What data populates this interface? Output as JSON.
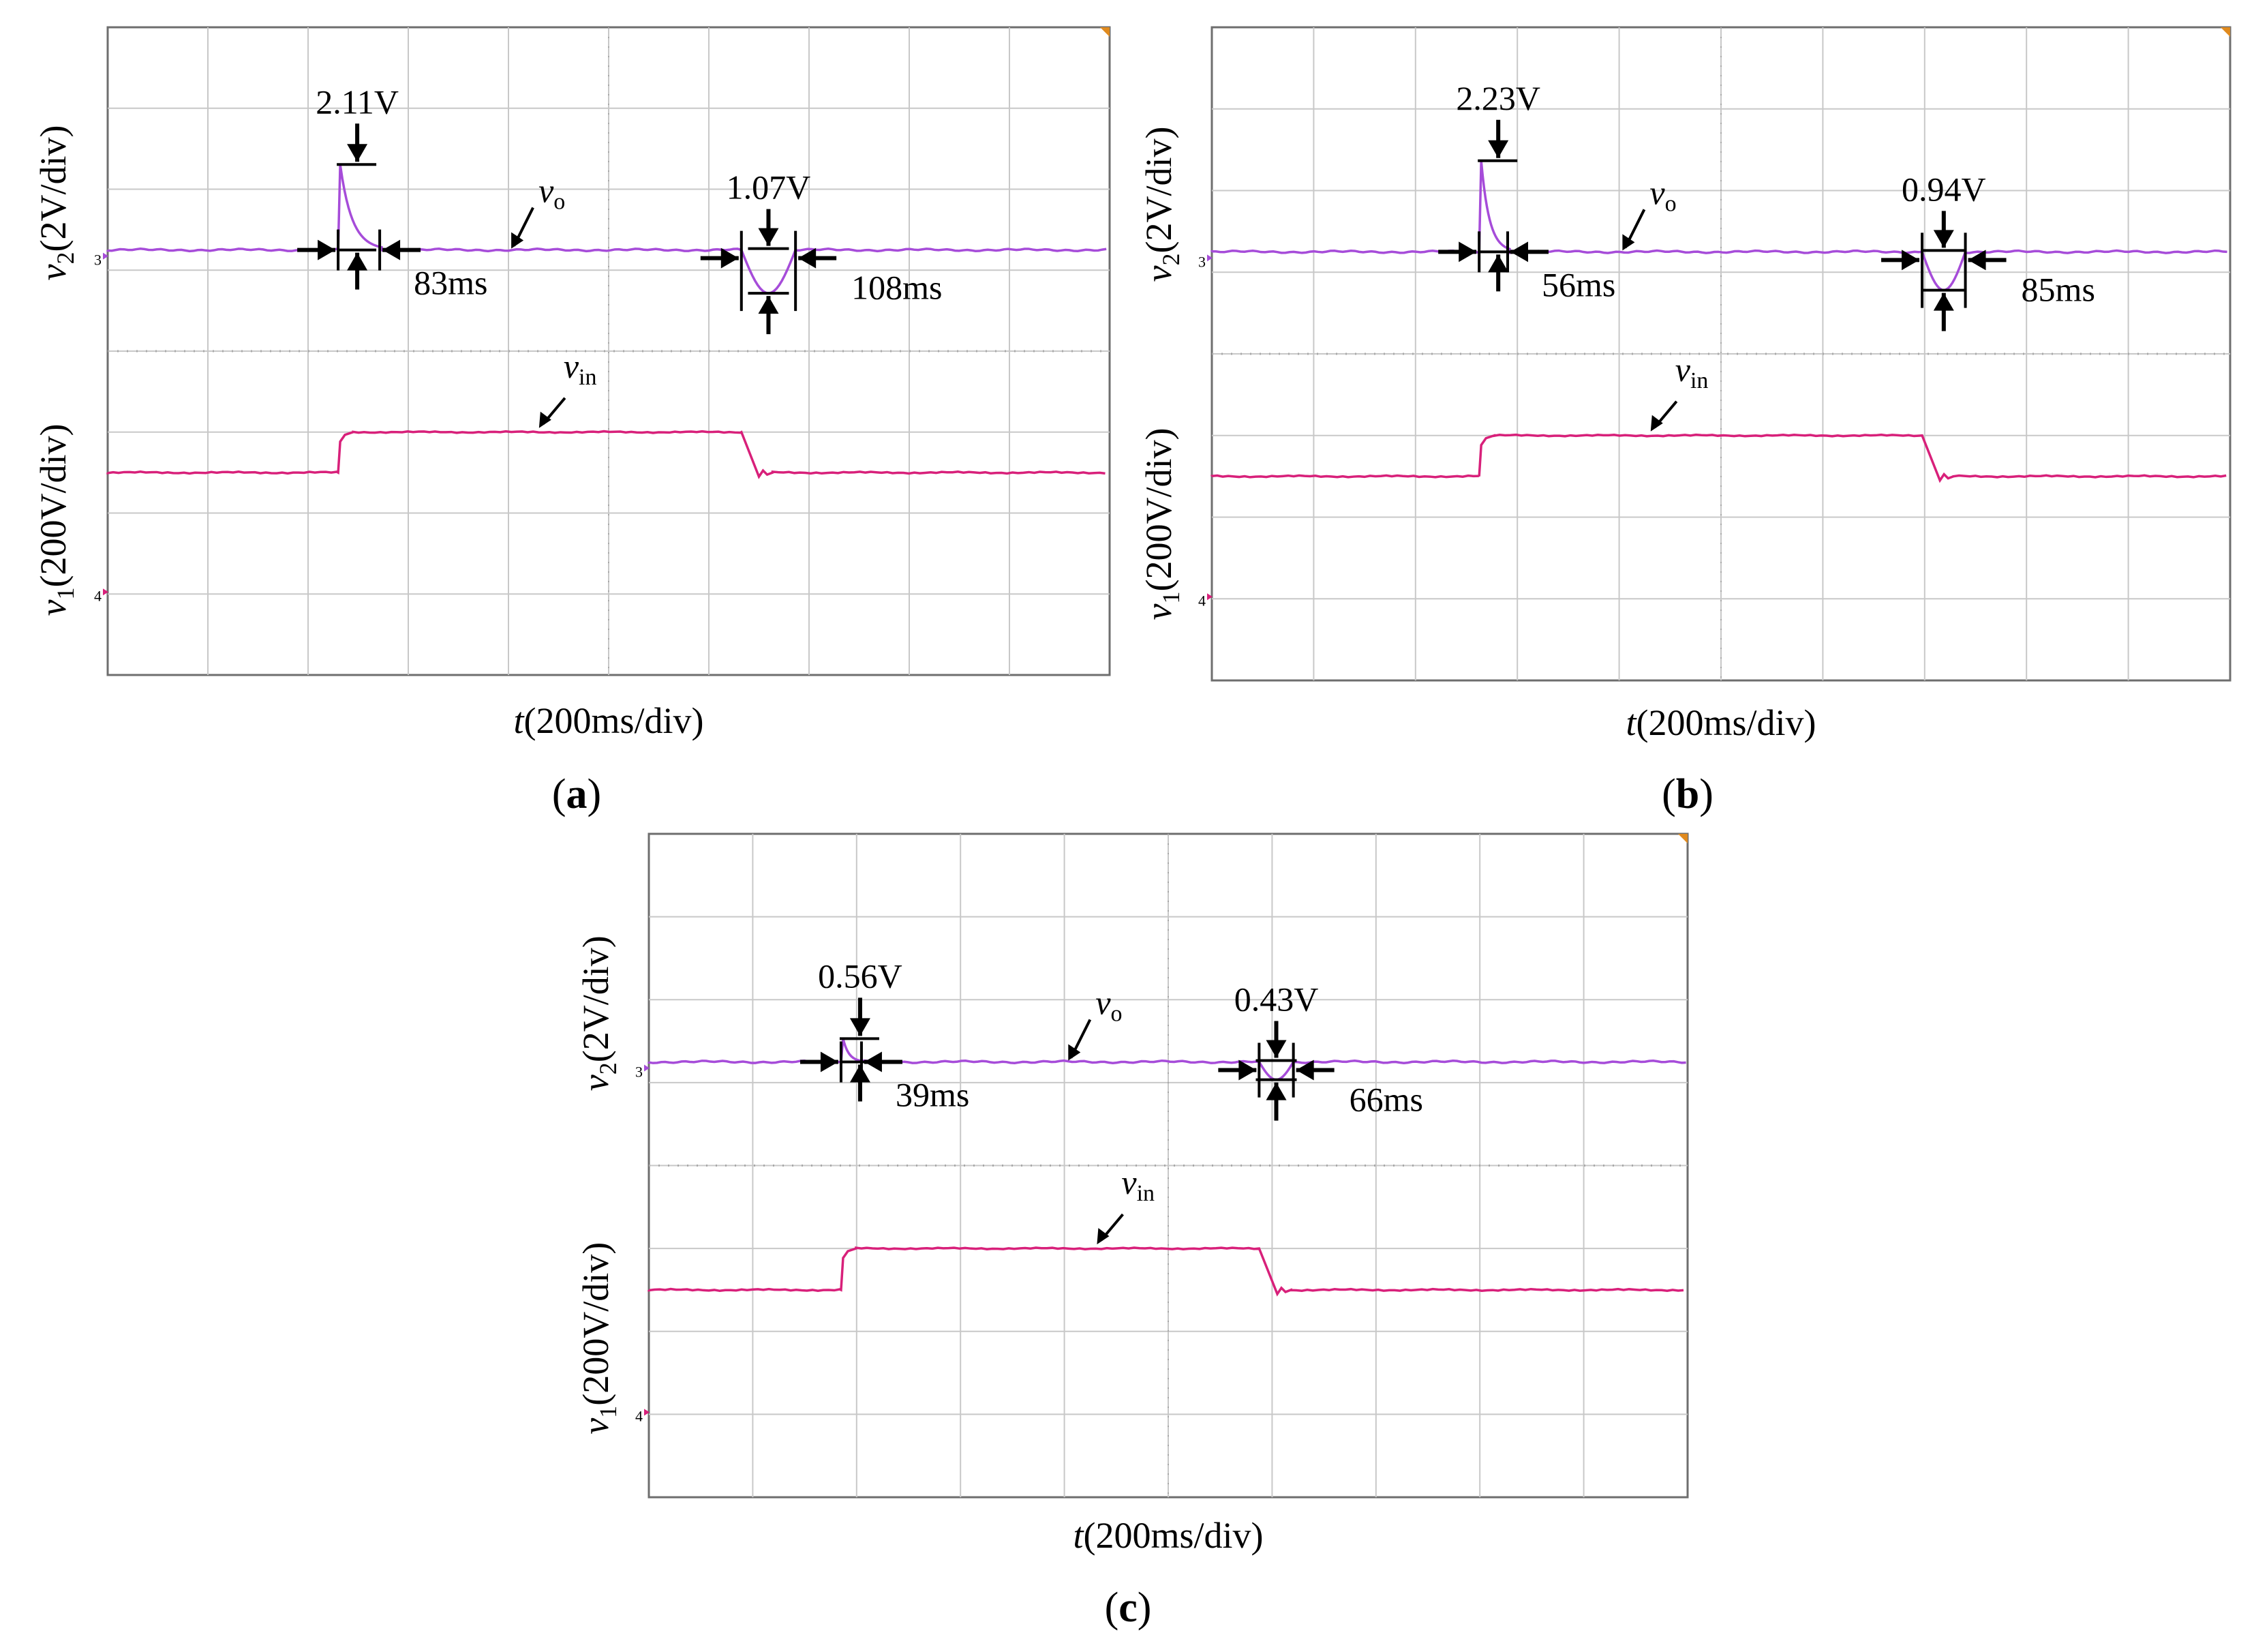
{
  "chart_data": [
    {
      "panel_label": "a",
      "type": "line",
      "xlabel_var": "t",
      "xlabel_unit": "(200ms/div)",
      "ylabel_top_var": "v",
      "ylabel_top_sub": "2",
      "ylabel_top_unit": "(2V/div)",
      "ylabel_bottom_var": "v",
      "ylabel_bottom_sub": "1",
      "ylabel_bottom_unit": "(200V/div)",
      "grid": {
        "x_divisions": 10,
        "y_divisions": 8
      },
      "x_range_ms": [
        0,
        2000
      ],
      "ch3_marker": "3",
      "ch4_marker": "4",
      "series": [
        {
          "name": "v",
          "sub": "o",
          "color": "#a64cd9",
          "channel": 3,
          "level_div": 5.25,
          "events": [
            {
              "start_ms": 460,
              "delta_V": 2.11,
              "recovery_ms": 83,
              "sign": 1
            },
            {
              "start_ms": 1265,
              "delta_V": 1.07,
              "recovery_ms": 108,
              "sign": -1
            }
          ]
        },
        {
          "name": "v",
          "sub": "in",
          "color": "#d8207a",
          "channel": 4,
          "low_div": 2.5,
          "high_div": 3.0,
          "step_up_ms": 460,
          "step_down_ms": 1265,
          "fall_ms": 35
        }
      ],
      "annotations": [
        {
          "text": "2.11V"
        },
        {
          "text": "83ms"
        },
        {
          "text": "1.07V"
        },
        {
          "text": "108ms"
        }
      ]
    },
    {
      "panel_label": "b",
      "type": "line",
      "xlabel_var": "t",
      "xlabel_unit": "(200ms/div)",
      "ylabel_top_var": "v",
      "ylabel_top_sub": "2",
      "ylabel_top_unit": "(2V/div)",
      "ylabel_bottom_var": "v",
      "ylabel_bottom_sub": "1",
      "ylabel_bottom_unit": "(200V/div)",
      "grid": {
        "x_divisions": 10,
        "y_divisions": 8
      },
      "x_range_ms": [
        0,
        2000
      ],
      "ch3_marker": "3",
      "ch4_marker": "4",
      "series": [
        {
          "name": "v",
          "sub": "o",
          "color": "#a64cd9",
          "channel": 3,
          "level_div": 5.25,
          "events": [
            {
              "start_ms": 525,
              "delta_V": 2.23,
              "recovery_ms": 56,
              "sign": 1
            },
            {
              "start_ms": 1395,
              "delta_V": 0.94,
              "recovery_ms": 85,
              "sign": -1
            }
          ]
        },
        {
          "name": "v",
          "sub": "in",
          "color": "#d8207a",
          "channel": 4,
          "low_div": 2.5,
          "high_div": 3.0,
          "step_up_ms": 525,
          "step_down_ms": 1395,
          "fall_ms": 35
        }
      ],
      "annotations": [
        {
          "text": "2.23V"
        },
        {
          "text": "56ms"
        },
        {
          "text": "0.94V"
        },
        {
          "text": "85ms"
        }
      ]
    },
    {
      "panel_label": "c",
      "type": "line",
      "xlabel_var": "t",
      "xlabel_unit": "(200ms/div)",
      "ylabel_top_var": "v",
      "ylabel_top_sub": "2",
      "ylabel_top_unit": "(2V/div)",
      "ylabel_bottom_var": "v",
      "ylabel_bottom_sub": "1",
      "ylabel_bottom_unit": "(200V/div)",
      "grid": {
        "x_divisions": 10,
        "y_divisions": 8
      },
      "x_range_ms": [
        0,
        2000
      ],
      "ch3_marker": "3",
      "ch4_marker": "4",
      "series": [
        {
          "name": "v",
          "sub": "o",
          "color": "#a64cd9",
          "channel": 3,
          "level_div": 5.25,
          "events": [
            {
              "start_ms": 370,
              "delta_V": 0.56,
              "recovery_ms": 39,
              "sign": 1
            },
            {
              "start_ms": 1175,
              "delta_V": 0.43,
              "recovery_ms": 66,
              "sign": -1
            }
          ]
        },
        {
          "name": "v",
          "sub": "in",
          "color": "#d8207a",
          "channel": 4,
          "low_div": 2.5,
          "high_div": 3.0,
          "step_up_ms": 370,
          "step_down_ms": 1175,
          "fall_ms": 35
        }
      ],
      "annotations": [
        {
          "text": "0.56V"
        },
        {
          "text": "39ms"
        },
        {
          "text": "0.43V"
        },
        {
          "text": "66ms"
        }
      ]
    }
  ]
}
